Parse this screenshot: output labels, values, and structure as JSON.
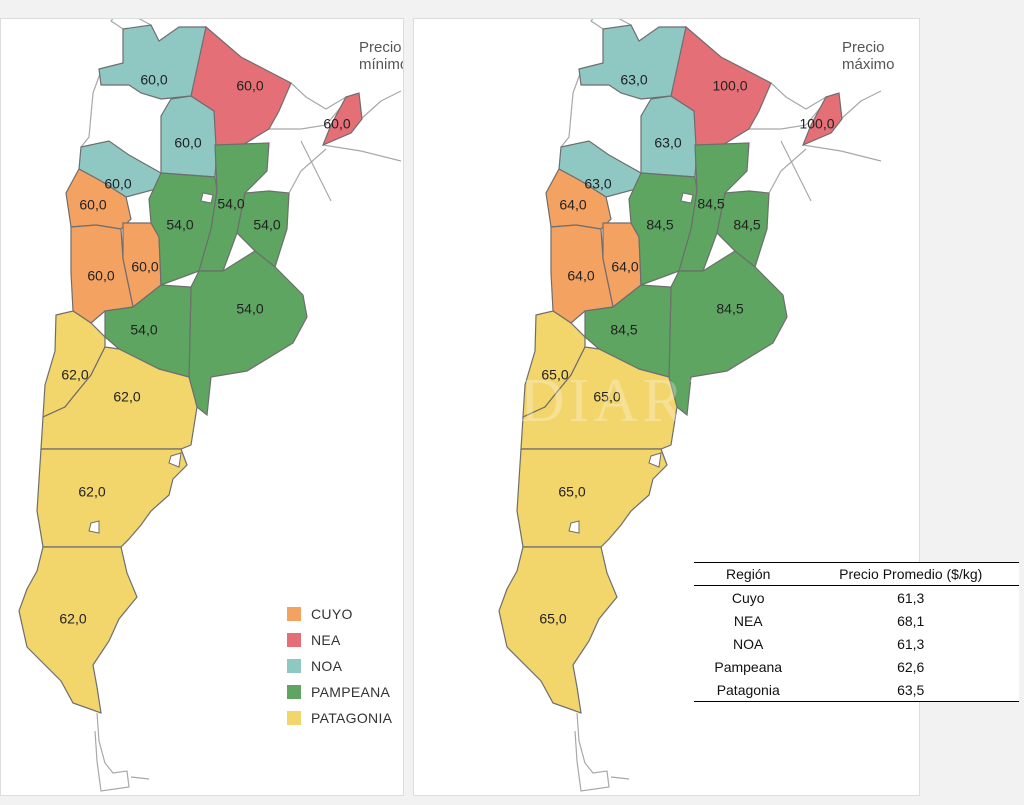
{
  "colors": {
    "CUYO": "#F4A261",
    "NEA": "#E46F76",
    "NOA": "#8FC7C3",
    "PAMPEANA": "#5DA561",
    "PATAGONIA": "#F2D56B"
  },
  "maps": {
    "min": {
      "title": "Precio mínimo",
      "values": {
        "noa_north": "60,0",
        "noa_center": "60,0",
        "noa_south": "60,0",
        "nea_chaco": "60,0",
        "nea_misiones": "60,0",
        "cuyo_sanjuan": "60,0",
        "cuyo_sanluis": "60,0",
        "cuyo_mendoza": "60,0",
        "pam_cordoba": "54,0",
        "pam_santafe": "54,0",
        "pam_entrerios": "54,0",
        "pam_buenosaires": "54,0",
        "pam_lapampa": "54,0",
        "pat_neuquen": "62,0",
        "pat_rionegro": "62,0",
        "pat_chubut": "62,0",
        "pat_santacruz": "62,0"
      }
    },
    "max": {
      "title": "Precio máximo",
      "values": {
        "noa_north": "63,0",
        "noa_center": "63,0",
        "noa_south": "63,0",
        "nea_chaco": "100,0",
        "nea_misiones": "100,0",
        "cuyo_sanjuan": "64,0",
        "cuyo_sanluis": "64,0",
        "cuyo_mendoza": "64,0",
        "pam_cordoba": "84,5",
        "pam_santafe": "84,5",
        "pam_entrerios": "84,5",
        "pam_buenosaires": "84,5",
        "pam_lapampa": "84,5",
        "pat_neuquen": "65,0",
        "pat_rionegro": "65,0",
        "pat_chubut": "65,0",
        "pat_santacruz": "65,0"
      }
    }
  },
  "legend": [
    {
      "label": "CUYO",
      "key": "CUYO"
    },
    {
      "label": "NEA",
      "key": "NEA"
    },
    {
      "label": "NOA",
      "key": "NOA"
    },
    {
      "label": "PAMPEANA",
      "key": "PAMPEANA"
    },
    {
      "label": "PATAGONIA",
      "key": "PATAGONIA"
    }
  ],
  "table": {
    "headers": [
      "Región",
      "Precio Promedio ($/kg)"
    ],
    "rows": [
      [
        "Cuyo",
        "61,3"
      ],
      [
        "NEA",
        "68,1"
      ],
      [
        "NOA",
        "61,3"
      ],
      [
        "Pampeana",
        "62,6"
      ],
      [
        "Patagonia",
        "63,5"
      ]
    ]
  },
  "watermark": "DIARIO"
}
